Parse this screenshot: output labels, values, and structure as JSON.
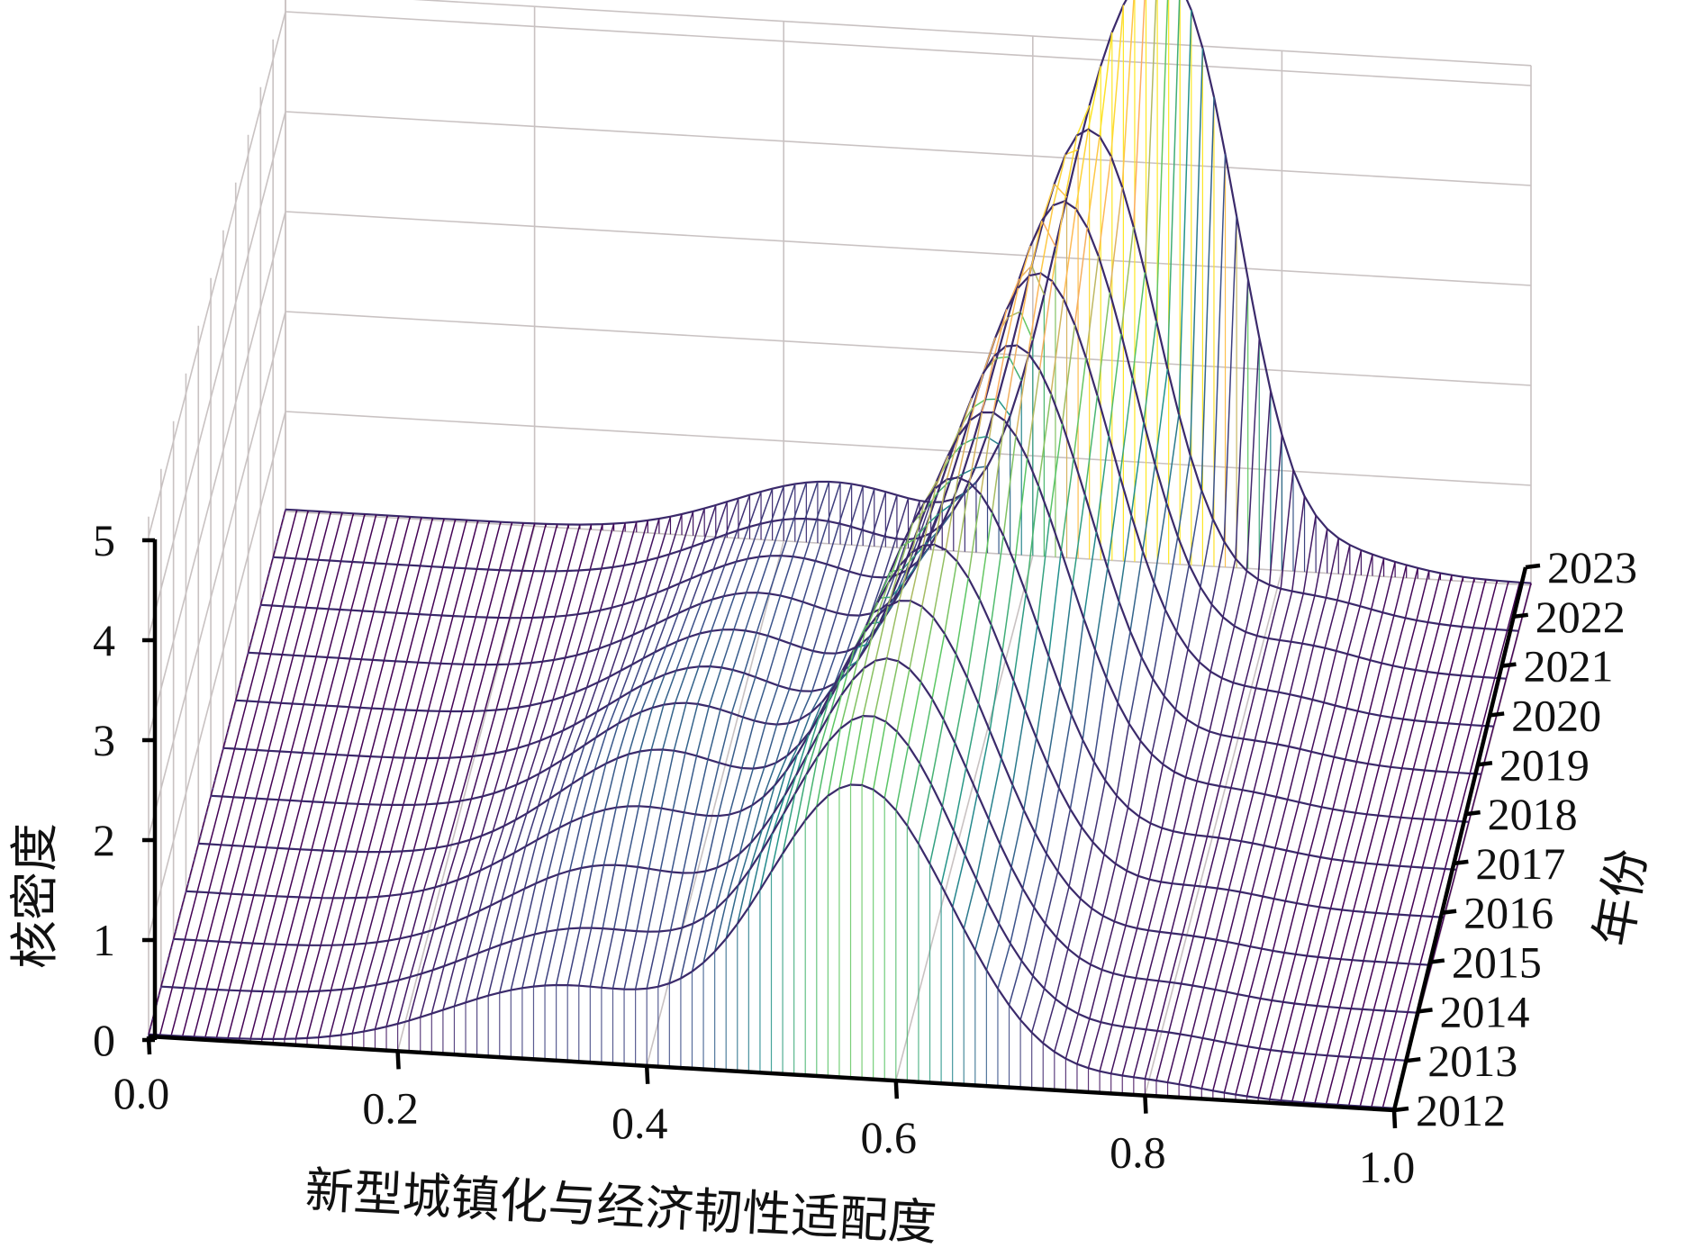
{
  "chart_data": {
    "type": "surface",
    "xlabel": "新型城镇化与经济韧性适配度",
    "ylabel": "年份",
    "zlabel": "核密度",
    "x_ticks": [
      "0.0",
      "0.2",
      "0.4",
      "0.6",
      "0.8",
      "1.0"
    ],
    "z_ticks": [
      "0",
      "1",
      "2",
      "3",
      "4",
      "5"
    ],
    "xlim": [
      0,
      1
    ],
    "zlim": [
      0,
      5
    ],
    "years": [
      "2012",
      "2013",
      "2014",
      "2015",
      "2016",
      "2017",
      "2018",
      "2019",
      "2020",
      "2021",
      "2022",
      "2023"
    ],
    "series": [
      {
        "name": "2012",
        "peaks": [
          [
            0.33,
            0.72,
            0.09
          ],
          [
            0.57,
            2.9,
            0.075
          ],
          [
            0.8,
            0.12,
            0.05
          ]
        ]
      },
      {
        "name": "2013",
        "peaks": [
          [
            0.34,
            0.82,
            0.09
          ],
          [
            0.57,
            3.1,
            0.072
          ],
          [
            0.8,
            0.13,
            0.05
          ]
        ]
      },
      {
        "name": "2014",
        "peaks": [
          [
            0.35,
            0.98,
            0.085
          ],
          [
            0.575,
            3.2,
            0.07
          ],
          [
            0.8,
            0.14,
            0.05
          ]
        ]
      },
      {
        "name": "2015",
        "peaks": [
          [
            0.36,
            1.1,
            0.085
          ],
          [
            0.58,
            3.3,
            0.068
          ],
          [
            0.8,
            0.14,
            0.05
          ]
        ]
      },
      {
        "name": "2016",
        "peaks": [
          [
            0.37,
            1.2,
            0.08
          ],
          [
            0.59,
            3.4,
            0.066
          ],
          [
            0.81,
            0.15,
            0.05
          ]
        ]
      },
      {
        "name": "2017",
        "peaks": [
          [
            0.38,
            1.2,
            0.08
          ],
          [
            0.6,
            3.6,
            0.064
          ],
          [
            0.81,
            0.16,
            0.05
          ]
        ]
      },
      {
        "name": "2018",
        "peaks": [
          [
            0.39,
            1.1,
            0.08
          ],
          [
            0.615,
            3.8,
            0.062
          ],
          [
            0.81,
            0.17,
            0.05
          ]
        ]
      },
      {
        "name": "2019",
        "peaks": [
          [
            0.4,
            1.0,
            0.08
          ],
          [
            0.625,
            4.0,
            0.06
          ],
          [
            0.82,
            0.18,
            0.05
          ]
        ]
      },
      {
        "name": "2020",
        "peaks": [
          [
            0.41,
            0.9,
            0.08
          ],
          [
            0.635,
            4.25,
            0.058
          ],
          [
            0.82,
            0.2,
            0.05
          ]
        ]
      },
      {
        "name": "2021",
        "peaks": [
          [
            0.42,
            0.8,
            0.08
          ],
          [
            0.645,
            4.5,
            0.056
          ],
          [
            0.83,
            0.22,
            0.05
          ]
        ]
      },
      {
        "name": "2022",
        "peaks": [
          [
            0.43,
            0.7,
            0.08
          ],
          [
            0.655,
            4.75,
            0.054
          ],
          [
            0.83,
            0.22,
            0.05
          ]
        ]
      },
      {
        "name": "2023",
        "peaks": [
          [
            0.44,
            0.6,
            0.08
          ],
          [
            0.665,
            4.45,
            0.052
          ],
          [
            0.735,
            3.4,
            0.042
          ],
          [
            0.84,
            0.22,
            0.05
          ]
        ]
      }
    ],
    "colormap": [
      "#440154",
      "#3b528b",
      "#21908d",
      "#5dc863",
      "#fdae61",
      "#fde725"
    ],
    "grid": true
  }
}
